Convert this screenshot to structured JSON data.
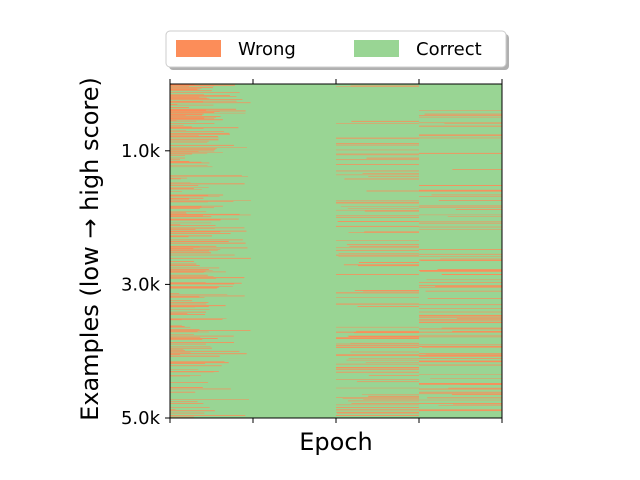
{
  "colors": {
    "wrong": "#fc8d59",
    "correct": "#99d594",
    "axis": "#000000"
  },
  "chart_data": {
    "type": "heatmap",
    "title": "",
    "xlabel": "Epoch",
    "ylabel": "Examples (low → high score)",
    "legend": {
      "placement": "top-center",
      "entries": [
        "Wrong",
        "Correct"
      ]
    },
    "y_range": [
      0,
      5000
    ],
    "y_ticks": [
      {
        "value": 1000,
        "label": "1.0k"
      },
      {
        "value": 3000,
        "label": "3.0k"
      },
      {
        "value": 5000,
        "label": "5.0k"
      }
    ],
    "num_epochs": 4,
    "x_tick_labels": [
      "",
      "",
      "",
      "",
      ""
    ],
    "grid": false,
    "wrong_rate_profile": {
      "description_by_epoch": [
        "high wrong rate, decreasing with example index",
        "almost all correct",
        "scattered wrong, denser toward bottom",
        "scattered wrong, denser toward bottom"
      ],
      "epoch1": {
        "y": [
          0,
          1000,
          2000,
          3000,
          4000,
          5000
        ],
        "rate": [
          0.85,
          0.6,
          0.5,
          0.45,
          0.4,
          0.35
        ]
      },
      "epoch2": {
        "y": [
          0,
          5000
        ],
        "rate": [
          0.0,
          0.0
        ]
      },
      "epoch3": {
        "y": [
          0,
          1000,
          2000,
          3000,
          4000,
          5000
        ],
        "rate": [
          0.05,
          0.12,
          0.18,
          0.2,
          0.3,
          0.28
        ]
      },
      "epoch4": {
        "y": [
          0,
          1000,
          2000,
          3000,
          4000,
          5000
        ],
        "rate": [
          0.05,
          0.12,
          0.18,
          0.2,
          0.3,
          0.28
        ]
      }
    }
  }
}
